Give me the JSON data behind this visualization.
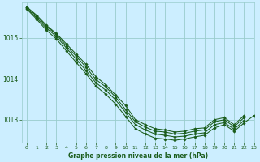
{
  "title": "Graphe pression niveau de la mer (hPa)",
  "bg_color": "#cceeff",
  "grid_color": "#99cccc",
  "line_color": "#1a5c1a",
  "marker_color": "#1a5c1a",
  "xlim": [
    -0.5,
    23
  ],
  "ylim": [
    1012.45,
    1015.85
  ],
  "yticks": [
    1013,
    1014,
    1015
  ],
  "xticks": [
    0,
    1,
    2,
    3,
    4,
    5,
    6,
    7,
    8,
    9,
    10,
    11,
    12,
    13,
    14,
    15,
    16,
    17,
    18,
    19,
    20,
    21,
    22,
    23
  ],
  "series": [
    [
      1015.75,
      1015.55,
      1015.3,
      1015.1,
      1014.85,
      1014.6,
      1014.35,
      1014.05,
      1013.85,
      1013.6,
      1013.35,
      1013.0,
      1012.88,
      1012.78,
      1012.75,
      1012.7,
      1012.72,
      1012.78,
      1012.8,
      1013.0,
      1013.05,
      1012.88,
      1013.1,
      null
    ],
    [
      1015.75,
      1015.52,
      1015.27,
      1015.08,
      1014.8,
      1014.55,
      1014.28,
      1013.98,
      1013.8,
      1013.55,
      1013.25,
      1012.95,
      1012.82,
      1012.72,
      1012.7,
      1012.65,
      1012.67,
      1012.72,
      1012.75,
      1012.95,
      1013.0,
      1012.83,
      1013.05,
      null
    ],
    [
      1015.72,
      1015.48,
      1015.23,
      1015.03,
      1014.75,
      1014.48,
      1014.2,
      1013.9,
      1013.72,
      1013.48,
      1013.18,
      1012.88,
      1012.75,
      1012.65,
      1012.62,
      1012.58,
      1012.6,
      1012.65,
      1012.68,
      1012.88,
      1012.93,
      1012.77,
      1012.98,
      null
    ],
    [
      1015.7,
      1015.45,
      1015.18,
      1014.97,
      1014.68,
      1014.4,
      1014.12,
      1013.82,
      1013.62,
      1013.38,
      1013.08,
      1012.78,
      1012.65,
      1012.55,
      1012.53,
      1012.5,
      1012.53,
      1012.58,
      1012.62,
      1012.8,
      1012.88,
      1012.72,
      1012.92,
      1013.1
    ]
  ]
}
